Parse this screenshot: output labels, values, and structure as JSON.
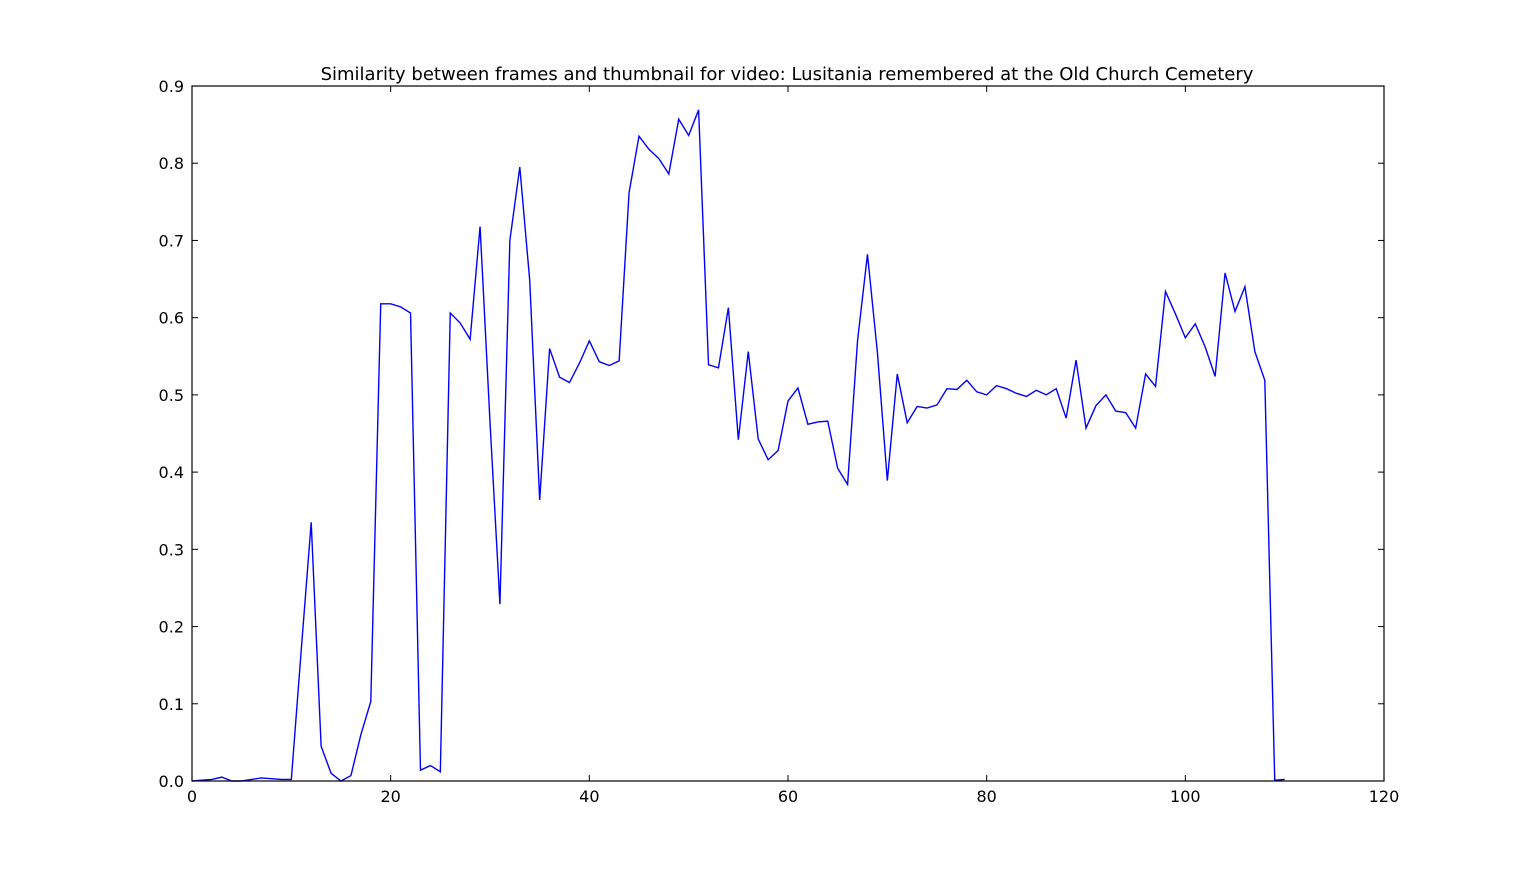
{
  "chart_data": {
    "type": "line",
    "title": "Similarity between frames and thumbnail for video: Lusitania remembered at the Old Church Cemetery",
    "xlabel": "",
    "ylabel": "",
    "xlim": [
      0,
      120
    ],
    "ylim": [
      0,
      0.9
    ],
    "x_ticks": [
      "0",
      "20",
      "40",
      "60",
      "80",
      "100",
      "120"
    ],
    "y_ticks": [
      "0.0",
      "0.1",
      "0.2",
      "0.3",
      "0.4",
      "0.5",
      "0.6",
      "0.7",
      "0.8",
      "0.9"
    ],
    "grid": false,
    "line_color": "#0000ff",
    "series": [
      {
        "x": [
          0,
          1,
          2,
          3,
          4,
          5,
          6,
          7,
          8,
          9,
          10,
          11,
          12,
          13,
          14,
          15,
          16,
          17,
          18,
          19,
          20,
          21,
          22,
          23,
          24,
          25,
          26,
          27,
          28,
          29,
          30,
          31,
          32,
          33,
          34,
          35,
          36,
          37,
          38,
          39,
          40,
          41,
          42,
          43,
          44,
          45,
          46,
          47,
          48,
          49,
          50,
          51,
          52,
          53,
          54,
          55,
          56,
          57,
          58,
          59,
          60,
          61,
          62,
          63,
          64,
          65,
          66,
          67,
          68,
          69,
          70,
          71,
          72,
          73,
          74,
          75,
          76,
          77,
          78,
          79,
          80,
          81,
          82,
          83,
          84,
          85,
          86,
          87,
          88,
          89,
          90,
          91,
          92,
          93,
          94,
          95,
          96,
          97,
          98,
          99,
          100,
          101,
          102,
          103,
          104,
          105,
          106,
          107,
          108,
          109,
          110
        ],
        "values": [
          0.0,
          0.001,
          0.002,
          0.005,
          0.0,
          0.0,
          0.002,
          0.004,
          0.003,
          0.002,
          0.002,
          0.17,
          0.335,
          0.045,
          0.01,
          0.0,
          0.007,
          0.06,
          0.103,
          0.618,
          0.618,
          0.614,
          0.606,
          0.014,
          0.02,
          0.012,
          0.606,
          0.593,
          0.572,
          0.718,
          0.465,
          0.229,
          0.7,
          0.795,
          0.648,
          0.364,
          0.56,
          0.523,
          0.516,
          0.541,
          0.57,
          0.543,
          0.538,
          0.544,
          0.762,
          0.835,
          0.818,
          0.806,
          0.786,
          0.857,
          0.836,
          0.869,
          0.539,
          0.535,
          0.613,
          0.442,
          0.556,
          0.443,
          0.416,
          0.428,
          0.492,
          0.509,
          0.462,
          0.465,
          0.466,
          0.405,
          0.384,
          0.57,
          0.682,
          0.555,
          0.389,
          0.527,
          0.464,
          0.485,
          0.483,
          0.487,
          0.508,
          0.507,
          0.519,
          0.504,
          0.5,
          0.512,
          0.508,
          0.502,
          0.498,
          0.506,
          0.5,
          0.508,
          0.47,
          0.545,
          0.457,
          0.486,
          0.5,
          0.479,
          0.477,
          0.457,
          0.527,
          0.511,
          0.634,
          0.605,
          0.574,
          0.592,
          0.562,
          0.524,
          0.658,
          0.608,
          0.64,
          0.556,
          0.519,
          0.001,
          0.002
        ]
      }
    ]
  }
}
